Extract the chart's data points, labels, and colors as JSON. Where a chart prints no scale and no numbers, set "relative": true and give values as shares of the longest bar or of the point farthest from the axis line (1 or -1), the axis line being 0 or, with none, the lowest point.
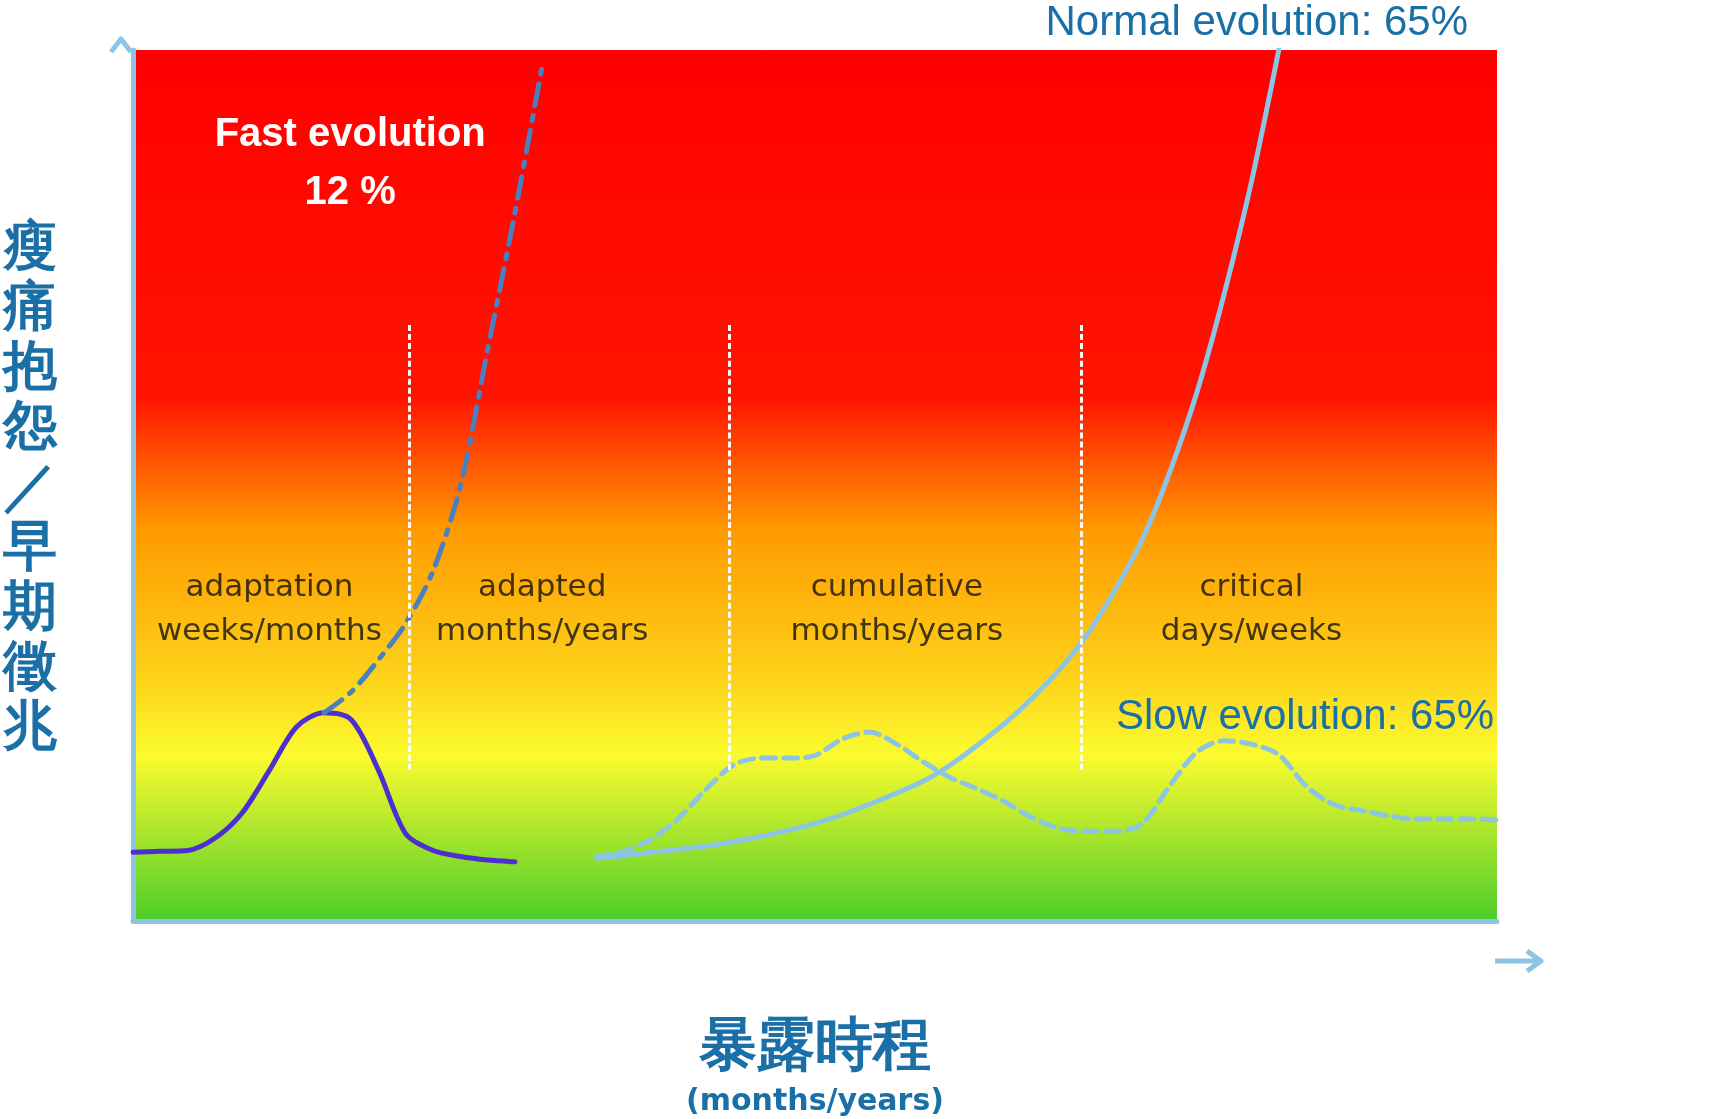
{
  "chart_data": {
    "type": "line",
    "relative": true,
    "xlabel": "暴露時程\n(months/years)",
    "ylabel": "瘦痛抱怨／早期徵兆",
    "categories": [
      null,
      null,
      null,
      null,
      null,
      null,
      null,
      null,
      null,
      null,
      null,
      null,
      null,
      null,
      null,
      null,
      null,
      null,
      null,
      null,
      null,
      null,
      null,
      null,
      null,
      null,
      null,
      null,
      null,
      null,
      null,
      null,
      null,
      null,
      null,
      null,
      null,
      null,
      null,
      null,
      null,
      null,
      null,
      null,
      null,
      null,
      null,
      null,
      null,
      null,
      null
    ],
    "series": [
      {
        "color": "#4b2fd0",
        "line_style": "solid",
        "values": [
          0.079,
          0.08,
          0.081,
          0.095,
          0.124,
          0.173,
          0.223,
          0.239,
          0.231,
          0.173,
          0.1,
          0.081,
          0.074,
          0.07,
          0.068,
          null,
          null,
          null,
          null,
          null,
          null,
          null,
          null,
          null,
          null,
          null,
          null,
          null,
          null,
          null,
          null,
          null,
          null,
          null,
          null,
          null,
          null,
          null,
          null,
          null,
          null,
          null,
          null,
          null,
          null,
          null,
          null,
          null,
          null,
          null,
          null
        ]
      },
      {
        "name": "Fast evolution\n12 %",
        "color": "#4a7fc0",
        "line_style": "dashdot",
        "values": [
          null,
          null,
          null,
          null,
          null,
          null,
          null,
          0.239,
          0.263,
          0.3,
          0.342,
          0.402,
          0.499,
          0.656,
          0.813,
          0.982,
          null,
          null,
          null,
          null,
          null,
          null,
          null,
          null,
          null,
          null,
          null,
          null,
          null,
          null,
          null,
          null,
          null,
          null,
          null,
          null,
          null,
          null,
          null,
          null,
          null,
          null,
          null,
          null,
          null,
          null,
          null,
          null,
          null,
          null,
          null
        ]
      },
      {
        "name": "Normal evolution: 65%",
        "color": "#8cc4e4",
        "line_style": "solid",
        "values": [
          null,
          null,
          null,
          null,
          null,
          null,
          null,
          null,
          null,
          null,
          null,
          null,
          null,
          null,
          null,
          null,
          null,
          0.072,
          0.075,
          0.079,
          0.082,
          0.086,
          0.091,
          0.097,
          0.104,
          0.112,
          0.122,
          0.134,
          0.147,
          0.161,
          0.18,
          0.203,
          0.228,
          0.257,
          0.29,
          0.33,
          0.38,
          0.438,
          0.515,
          0.607,
          0.72,
          0.849,
          1.0,
          null,
          null,
          null,
          null,
          null,
          null,
          null,
          null
        ]
      },
      {
        "name": "Slow evolution: 65%",
        "color": "#8cc4e4",
        "line_style": "dashed",
        "values": [
          null,
          null,
          null,
          null,
          null,
          null,
          null,
          null,
          null,
          null,
          null,
          null,
          null,
          null,
          null,
          null,
          null,
          0.074,
          0.08,
          0.094,
          0.118,
          0.151,
          0.179,
          0.187,
          0.187,
          0.19,
          0.209,
          0.217,
          0.203,
          0.182,
          0.164,
          0.151,
          0.136,
          0.118,
          0.106,
          0.103,
          0.103,
          0.112,
          0.155,
          0.194,
          0.207,
          0.203,
          0.191,
          0.155,
          0.134,
          0.127,
          0.121,
          0.117,
          0.117,
          0.117,
          0.116
        ]
      }
    ],
    "annotations": [
      "adaptation\nweeks/months",
      "adapted\nmonths/years",
      "cumulative\nmonths/years",
      "critical\ndays/weeks"
    ],
    "legend": false,
    "grid": false,
    "marker": "none"
  }
}
